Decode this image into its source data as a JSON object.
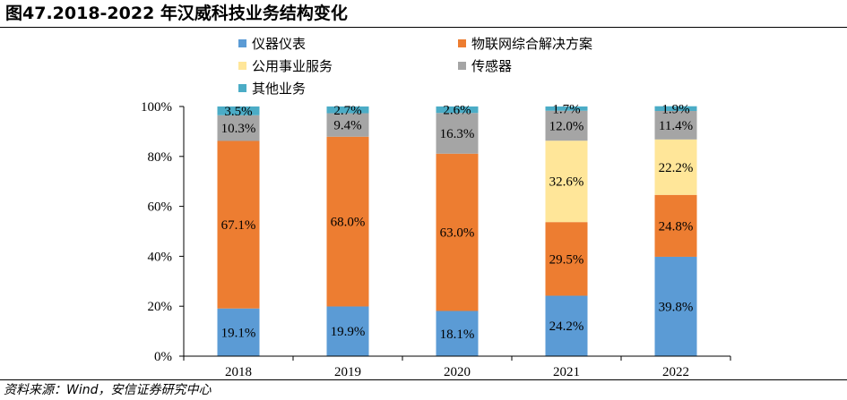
{
  "header": {
    "title": "图47.2018-2022 年汉威科技业务结构变化"
  },
  "footer": {
    "source": "资料来源：Wind，安信证券研究中心"
  },
  "chart_data": {
    "type": "bar",
    "stacked": true,
    "percent": true,
    "categories": [
      "2018",
      "2019",
      "2020",
      "2021",
      "2022"
    ],
    "y_ticks": [
      "0%",
      "20%",
      "40%",
      "60%",
      "80%",
      "100%"
    ],
    "ylim": [
      0,
      100
    ],
    "grid": false,
    "legend_position": "top",
    "series": [
      {
        "name": "仪器仪表",
        "color": "#5b9bd5",
        "values": [
          19.1,
          19.9,
          18.1,
          24.2,
          39.8
        ],
        "labels": [
          "19.1%",
          "19.9%",
          "18.1%",
          "24.2%",
          "39.8%"
        ]
      },
      {
        "name": "物联网综合解决方案",
        "color": "#ed7d31",
        "values": [
          67.1,
          68.0,
          63.0,
          29.5,
          24.8
        ],
        "labels": [
          "67.1%",
          "68.0%",
          "63.0%",
          "29.5%",
          "24.8%"
        ]
      },
      {
        "name": "公用事业服务",
        "color": "#ffe699",
        "values": [
          0,
          0,
          0,
          32.6,
          22.2
        ],
        "labels": [
          "",
          "",
          "",
          "32.6%",
          "22.2%"
        ]
      },
      {
        "name": "传感器",
        "color": "#a5a5a5",
        "values": [
          10.3,
          9.4,
          16.3,
          12.0,
          11.4
        ],
        "labels": [
          "10.3%",
          "9.4%",
          "16.3%",
          "12.0%",
          "11.4%"
        ]
      },
      {
        "name": "其他业务",
        "color": "#4bacc6",
        "values": [
          3.5,
          2.7,
          2.6,
          1.7,
          1.9
        ],
        "labels": [
          "3.5%",
          "2.7%",
          "2.6%",
          "1.7%",
          "1.9%"
        ]
      }
    ]
  }
}
